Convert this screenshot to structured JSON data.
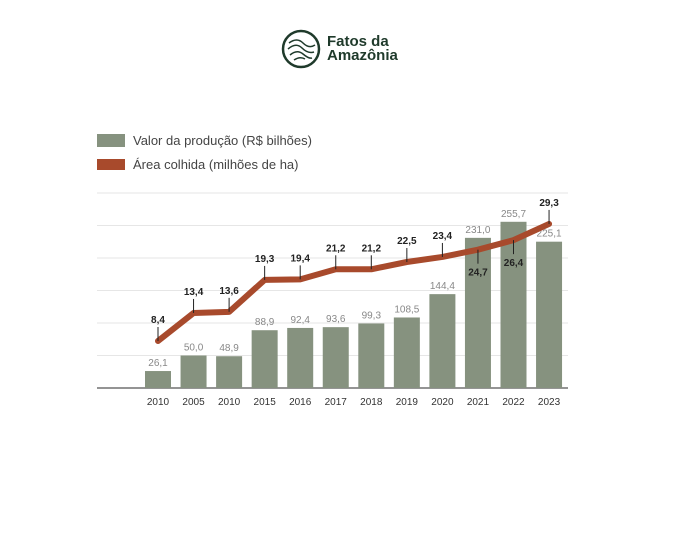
{
  "logo": {
    "line1": "Fatos da",
    "line2": "Amazônia"
  },
  "chart_data": {
    "type": "bar+line",
    "categories": [
      "2010",
      "2005",
      "2010",
      "2015",
      "2016",
      "2017",
      "2018",
      "2019",
      "2020",
      "2021",
      "2022",
      "2023"
    ],
    "series": [
      {
        "name": "Valor da produção (R$ bilhões)",
        "type": "bar",
        "color": "#86927f",
        "values": [
          26.1,
          50.0,
          48.9,
          88.9,
          92.4,
          93.6,
          99.3,
          108.5,
          144.4,
          231.0,
          255.7,
          225.1
        ],
        "labels": [
          "26,1",
          "50,0",
          "48,9",
          "88,9",
          "92,4",
          "93,6",
          "99,3",
          "108,5",
          "144,4",
          "231,0",
          "255,7",
          "225,1"
        ]
      },
      {
        "name": "Área colhida (milhões de ha)",
        "type": "line",
        "color": "#a84a2c",
        "values": [
          8.4,
          13.4,
          13.6,
          19.3,
          19.4,
          21.2,
          21.2,
          22.5,
          23.4,
          24.7,
          26.4,
          29.3
        ],
        "labels": [
          "8,4",
          "13,4",
          "13,6",
          "19,3",
          "19,4",
          "21,2",
          "21,2",
          "22,5",
          "23,4",
          "24,7",
          "26,4",
          "29,3"
        ]
      }
    ],
    "ylim": [
      0,
      300
    ],
    "grid": true,
    "legend": "top-left"
  }
}
